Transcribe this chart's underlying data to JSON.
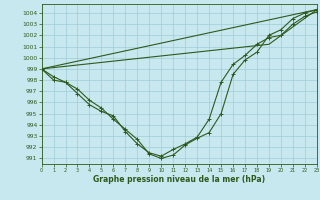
{
  "xlabel": "Graphe pression niveau de la mer (hPa)",
  "bg_color": "#c8e8f0",
  "grid_color": "#a0ccd8",
  "line_color": "#2d5a1b",
  "ylim": [
    990.5,
    1004.8
  ],
  "xlim": [
    0,
    23
  ],
  "ytick_vals": [
    991,
    992,
    993,
    994,
    995,
    996,
    997,
    998,
    999,
    1000,
    1001,
    1002,
    1003,
    1004
  ],
  "xtick_vals": [
    0,
    1,
    2,
    3,
    4,
    5,
    6,
    7,
    8,
    9,
    10,
    11,
    12,
    13,
    14,
    15,
    16,
    17,
    18,
    19,
    20,
    21,
    22,
    23
  ],
  "s1x": [
    0,
    1,
    2,
    3,
    4,
    5,
    6,
    7,
    8,
    9,
    10,
    11,
    12,
    13,
    14,
    15,
    16,
    17,
    18,
    19,
    20,
    21,
    22,
    23
  ],
  "s1y": [
    999.0,
    998.3,
    997.8,
    997.2,
    996.2,
    995.5,
    994.5,
    993.6,
    992.7,
    991.4,
    991.0,
    991.3,
    992.2,
    992.8,
    993.3,
    995.0,
    998.5,
    999.8,
    1000.5,
    1002.0,
    1002.5,
    1003.5,
    1004.0,
    1004.3
  ],
  "s2x": [
    0,
    1,
    2,
    3,
    4,
    5,
    6,
    7,
    8,
    9,
    10,
    11,
    12,
    13,
    14,
    15,
    16,
    17,
    18,
    19,
    20,
    21,
    22,
    23
  ],
  "s2y": [
    999.0,
    998.0,
    997.8,
    996.8,
    995.8,
    995.2,
    994.8,
    993.4,
    992.3,
    991.5,
    991.2,
    991.8,
    992.3,
    992.9,
    994.5,
    997.8,
    999.4,
    1000.2,
    1001.2,
    1001.8,
    1002.0,
    1003.0,
    1003.7,
    1004.1
  ],
  "s3x": [
    0,
    23
  ],
  "s3y": [
    999.0,
    1004.3
  ],
  "s4x": [
    0,
    19,
    23
  ],
  "s4y": [
    999.0,
    1001.2,
    1004.3
  ]
}
